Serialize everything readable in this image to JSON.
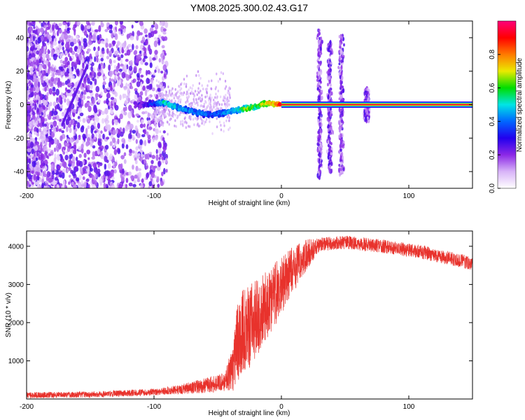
{
  "title": "YM08.2025.300.02.43.G17",
  "chart_data": [
    {
      "type": "heatmap",
      "xlabel": "Height of straight line (km)",
      "ylabel": "Frequency (Hz)",
      "xlim": [
        -200,
        150
      ],
      "ylim": [
        -50,
        50
      ],
      "xticks": [
        -200,
        -100,
        0,
        100
      ],
      "yticks": [
        -40,
        -20,
        0,
        20,
        40
      ],
      "colorbar": {
        "label": "Normalized spectral amplitude",
        "range": [
          0,
          1
        ],
        "ticks": [
          0.0,
          0.2,
          0.4,
          0.6,
          0.8
        ],
        "tick_labels": [
          "0.0",
          "0.2",
          "0.4",
          "0.6",
          "0.8"
        ],
        "colors": [
          "#ffffff",
          "#d8b4f8",
          "#8c28e6",
          "#2200ee",
          "#0066ff",
          "#00e5e5",
          "#00dd00",
          "#eaea00",
          "#ff7a00",
          "#ff0000",
          "#ff007a"
        ]
      },
      "ridge": [
        {
          "x": -110,
          "f": 0,
          "a": 0.25
        },
        {
          "x": -100,
          "f": 0.5,
          "a": 0.35
        },
        {
          "x": -92,
          "f": 1.5,
          "a": 0.55
        },
        {
          "x": -85,
          "f": -1,
          "a": 0.5
        },
        {
          "x": -75,
          "f": -3,
          "a": 0.45
        },
        {
          "x": -65,
          "f": -5,
          "a": 0.45
        },
        {
          "x": -55,
          "f": -6,
          "a": 0.4
        },
        {
          "x": -45,
          "f": -5,
          "a": 0.45
        },
        {
          "x": -35,
          "f": -3,
          "a": 0.5
        },
        {
          "x": -28,
          "f": -2.5,
          "a": 0.7
        },
        {
          "x": -20,
          "f": -1,
          "a": 0.6
        },
        {
          "x": -12,
          "f": 1,
          "a": 0.75
        },
        {
          "x": -5,
          "f": 0.5,
          "a": 0.8
        },
        {
          "x": 0,
          "f": 0,
          "a": 0.95
        },
        {
          "x": 150,
          "f": 0,
          "a": 0.95
        }
      ],
      "bursts": [
        {
          "x": 30,
          "fmin": -45,
          "fmax": 45
        },
        {
          "x": 38,
          "fmin": -40,
          "fmax": 38
        },
        {
          "x": 47,
          "fmin": -42,
          "fmax": 42
        },
        {
          "x": 67,
          "fmin": -10,
          "fmax": 10
        }
      ]
    },
    {
      "type": "line",
      "xlabel": "Height of straight line (km)",
      "ylabel": "SNR (10 * v/v)",
      "xlim": [
        -200,
        150
      ],
      "ylim": [
        0,
        4400
      ],
      "xticks": [
        -200,
        -100,
        0,
        100
      ],
      "yticks": [
        1000,
        2000,
        3000,
        4000
      ],
      "color": "#e8322c",
      "envelope": [
        {
          "x": -200,
          "mean": 100,
          "noise": 80
        },
        {
          "x": -150,
          "mean": 120,
          "noise": 80
        },
        {
          "x": -100,
          "mean": 180,
          "noise": 90
        },
        {
          "x": -80,
          "mean": 250,
          "noise": 120
        },
        {
          "x": -60,
          "mean": 350,
          "noise": 200
        },
        {
          "x": -45,
          "mean": 450,
          "noise": 250
        },
        {
          "x": -38,
          "mean": 800,
          "noise": 600
        },
        {
          "x": -35,
          "mean": 1400,
          "noise": 1000
        },
        {
          "x": -30,
          "mean": 1800,
          "noise": 1100
        },
        {
          "x": -25,
          "mean": 1900,
          "noise": 1100
        },
        {
          "x": -20,
          "mean": 2100,
          "noise": 1000
        },
        {
          "x": -10,
          "mean": 2500,
          "noise": 900
        },
        {
          "x": 0,
          "mean": 3000,
          "noise": 800
        },
        {
          "x": 10,
          "mean": 3400,
          "noise": 600
        },
        {
          "x": 20,
          "mean": 3800,
          "noise": 400
        },
        {
          "x": 30,
          "mean": 4050,
          "noise": 180
        },
        {
          "x": 50,
          "mean": 4100,
          "noise": 180
        },
        {
          "x": 80,
          "mean": 4000,
          "noise": 180
        },
        {
          "x": 110,
          "mean": 3850,
          "noise": 180
        },
        {
          "x": 150,
          "mean": 3550,
          "noise": 180
        }
      ]
    }
  ]
}
